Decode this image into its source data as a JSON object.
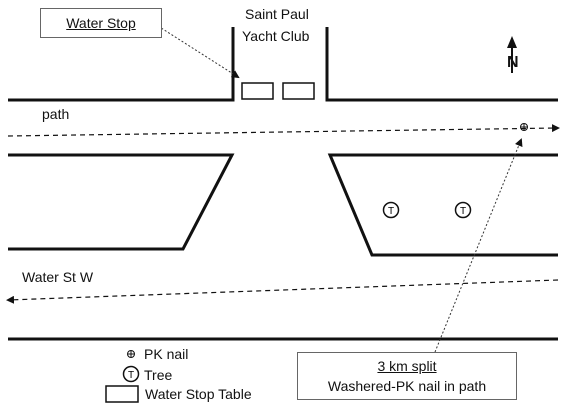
{
  "callouts": {
    "water_stop": "Water Stop",
    "split_title": "3 km split",
    "split_detail": "Washered-PK nail in path"
  },
  "labels": {
    "club_line1": "Saint Paul",
    "club_line2": "Yacht Club",
    "path": "path",
    "street": "Water St W",
    "north": "N"
  },
  "legend": {
    "pk_nail": "PK nail",
    "tree": "Tree",
    "tree_symbol": "T",
    "table": "Water Stop Table"
  },
  "colors": {
    "lines": "#111111",
    "box_border": "#666666"
  }
}
